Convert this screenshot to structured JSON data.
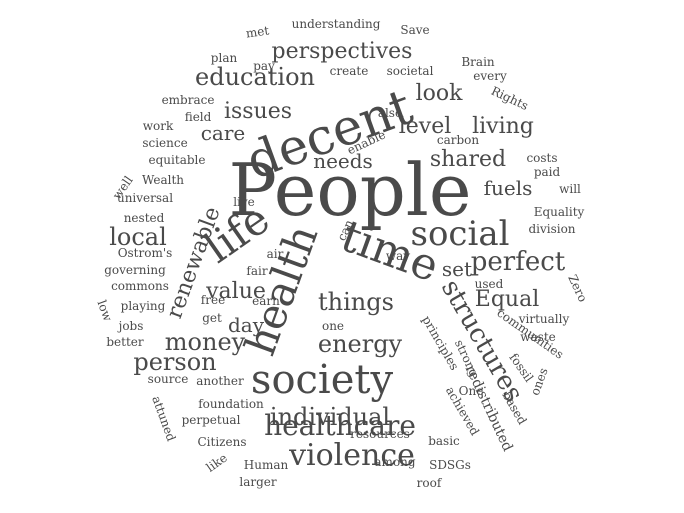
{
  "word_cloud": {
    "words": [
      {
        "id": "people",
        "text": "People",
        "weight": 100,
        "color": "#3f3f3f"
      },
      {
        "id": "decent",
        "text": "decent",
        "weight": 55
      },
      {
        "id": "time",
        "text": "time",
        "weight": 55
      },
      {
        "id": "social",
        "text": "social",
        "weight": 50
      },
      {
        "id": "society",
        "text": "society",
        "weight": 45
      },
      {
        "id": "health",
        "text": "health",
        "weight": 55
      },
      {
        "id": "life",
        "text": "life",
        "weight": 45
      },
      {
        "id": "violence",
        "text": "violence",
        "weight": 36
      },
      {
        "id": "healthcare",
        "text": "healthcare",
        "weight": 34
      },
      {
        "id": "structures",
        "text": "structures",
        "weight": 34
      },
      {
        "id": "perfect",
        "text": "perfect",
        "weight": 30
      },
      {
        "id": "individual",
        "text": "individual",
        "weight": 30
      },
      {
        "id": "things",
        "text": "things",
        "weight": 30
      },
      {
        "id": "energy",
        "text": "energy",
        "weight": 30
      },
      {
        "id": "person",
        "text": "person",
        "weight": 30
      },
      {
        "id": "money",
        "text": "money",
        "weight": 30
      },
      {
        "id": "local",
        "text": "local",
        "weight": 30
      },
      {
        "id": "renewable",
        "text": "renewable",
        "weight": 28
      },
      {
        "id": "education",
        "text": "education",
        "weight": 28
      },
      {
        "id": "perspectives",
        "text": "perspectives",
        "weight": 28
      },
      {
        "id": "shared",
        "text": "shared",
        "weight": 28
      },
      {
        "id": "living",
        "text": "living",
        "weight": 28
      },
      {
        "id": "needs",
        "text": "needs",
        "weight": 26
      },
      {
        "id": "issues",
        "text": "issues",
        "weight": 28
      },
      {
        "id": "level",
        "text": "level",
        "weight": 28
      },
      {
        "id": "look",
        "text": "look",
        "weight": 28
      },
      {
        "id": "care",
        "text": "care",
        "weight": 26
      },
      {
        "id": "fuels",
        "text": "fuels",
        "weight": 26
      },
      {
        "id": "value",
        "text": "value",
        "weight": 26
      },
      {
        "id": "day",
        "text": "day",
        "weight": 26
      },
      {
        "id": "set",
        "text": "set",
        "weight": 26
      },
      {
        "id": "equal",
        "text": "Equal",
        "weight": 26
      },
      {
        "id": "understanding",
        "text": "understanding",
        "weight": 16
      },
      {
        "id": "met",
        "text": "met",
        "weight": 14
      },
      {
        "id": "save",
        "text": "Save",
        "weight": 14
      },
      {
        "id": "plan",
        "text": "plan",
        "weight": 14
      },
      {
        "id": "pay",
        "text": "pay",
        "weight": 14
      },
      {
        "id": "create",
        "text": "create",
        "weight": 14
      },
      {
        "id": "societal",
        "text": "societal",
        "weight": 14
      },
      {
        "id": "brain",
        "text": "Brain",
        "weight": 14
      },
      {
        "id": "every",
        "text": "every",
        "weight": 14
      },
      {
        "id": "rights",
        "text": "Rights",
        "weight": 14
      },
      {
        "id": "embrace",
        "text": "embrace",
        "weight": 14
      },
      {
        "id": "field",
        "text": "field",
        "weight": 14
      },
      {
        "id": "also",
        "text": "also",
        "weight": 14
      },
      {
        "id": "enable",
        "text": "enable",
        "weight": 14
      },
      {
        "id": "carbon",
        "text": "carbon",
        "weight": 14
      },
      {
        "id": "work",
        "text": "work",
        "weight": 14
      },
      {
        "id": "science",
        "text": "science",
        "weight": 14
      },
      {
        "id": "equitable",
        "text": "equitable",
        "weight": 14
      },
      {
        "id": "costs",
        "text": "costs",
        "weight": 14
      },
      {
        "id": "paid",
        "text": "paid",
        "weight": 14
      },
      {
        "id": "well",
        "text": "well",
        "weight": 14
      },
      {
        "id": "wealth",
        "text": "Wealth",
        "weight": 14
      },
      {
        "id": "will",
        "text": "will",
        "weight": 14
      },
      {
        "id": "universal",
        "text": "universal",
        "weight": 14
      },
      {
        "id": "live",
        "text": "live",
        "weight": 14
      },
      {
        "id": "can",
        "text": "can",
        "weight": 14
      },
      {
        "id": "equality",
        "text": "Equality",
        "weight": 14
      },
      {
        "id": "nested",
        "text": "nested",
        "weight": 14
      },
      {
        "id": "division",
        "text": "division",
        "weight": 14
      },
      {
        "id": "ostroms",
        "text": "Ostrom's",
        "weight": 14
      },
      {
        "id": "air",
        "text": "air",
        "weight": 14
      },
      {
        "id": "way",
        "text": "way",
        "weight": 14
      },
      {
        "id": "governing",
        "text": "governing",
        "weight": 14
      },
      {
        "id": "fair",
        "text": "fair",
        "weight": 14
      },
      {
        "id": "commons",
        "text": "commons",
        "weight": 14
      },
      {
        "id": "used",
        "text": "used",
        "weight": 14
      },
      {
        "id": "zero",
        "text": "Zero",
        "weight": 14
      },
      {
        "id": "low",
        "text": "low",
        "weight": 14
      },
      {
        "id": "playing",
        "text": "playing",
        "weight": 14
      },
      {
        "id": "free",
        "text": "free",
        "weight": 14
      },
      {
        "id": "earn",
        "text": "earn",
        "weight": 14
      },
      {
        "id": "get",
        "text": "get",
        "weight": 14
      },
      {
        "id": "one",
        "text": "one",
        "weight": 14
      },
      {
        "id": "principles",
        "text": "principles",
        "weight": 14
      },
      {
        "id": "virtually",
        "text": "virtually",
        "weight": 14
      },
      {
        "id": "jobs",
        "text": "jobs",
        "weight": 14
      },
      {
        "id": "communities",
        "text": "communities",
        "weight": 14
      },
      {
        "id": "better",
        "text": "better",
        "weight": 14
      },
      {
        "id": "strong",
        "text": "strong",
        "weight": 14
      },
      {
        "id": "waste",
        "text": "waste",
        "weight": 14
      },
      {
        "id": "fossil",
        "text": "fossil",
        "weight": 14
      },
      {
        "id": "source",
        "text": "source",
        "weight": 14
      },
      {
        "id": "another",
        "text": "another",
        "weight": 14
      },
      {
        "id": "one_cap",
        "text": "One",
        "weight": 14
      },
      {
        "id": "ones",
        "text": "ones",
        "weight": 14
      },
      {
        "id": "redistributed",
        "text": "redistributed",
        "weight": 14
      },
      {
        "id": "foundation",
        "text": "foundation",
        "weight": 14
      },
      {
        "id": "attuned",
        "text": "attuned",
        "weight": 14
      },
      {
        "id": "perpetual",
        "text": "perpetual",
        "weight": 14
      },
      {
        "id": "achieved",
        "text": "achieved",
        "weight": 14
      },
      {
        "id": "based",
        "text": "based",
        "weight": 14
      },
      {
        "id": "resources",
        "text": "resources",
        "weight": 14
      },
      {
        "id": "citizens",
        "text": "Citizens",
        "weight": 14
      },
      {
        "id": "basic",
        "text": "basic",
        "weight": 14
      },
      {
        "id": "like",
        "text": "like",
        "weight": 14
      },
      {
        "id": "human",
        "text": "Human",
        "weight": 14
      },
      {
        "id": "among",
        "text": "among",
        "weight": 14
      },
      {
        "id": "sdsgs",
        "text": "SDSGs",
        "weight": 14
      },
      {
        "id": "larger",
        "text": "larger",
        "weight": 14
      },
      {
        "id": "roof",
        "text": "roof",
        "weight": 14
      }
    ]
  }
}
